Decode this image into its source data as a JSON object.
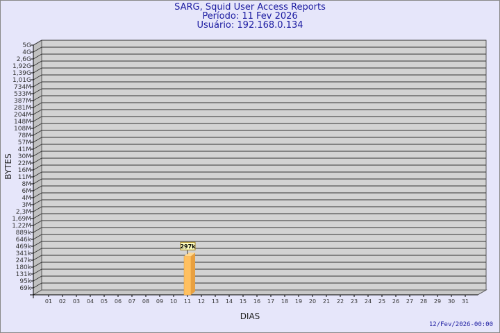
{
  "header": {
    "title": "SARG, Squid User Access Reports",
    "period": "Período: 11 Fev 2026",
    "user": "Usuário: 192.168.0.134"
  },
  "footer": {
    "timestamp": "12/Fev/2026-00:00"
  },
  "colors": {
    "background": "#e6e6fa",
    "plot": "#d3d3d3",
    "bar": "#ffc060",
    "title": "#1a1aa0"
  },
  "chart_data": {
    "type": "bar",
    "xlabel": "DIAS",
    "ylabel": "BYTES",
    "yscale": "log",
    "grid": true,
    "yticks": [
      "5G",
      "4G",
      "2,6G",
      "1,92G",
      "1,39G",
      "1,01G",
      "734M",
      "533M",
      "387M",
      "281M",
      "204M",
      "148M",
      "108M",
      "78M",
      "57M",
      "41M",
      "30M",
      "22M",
      "16M",
      "11M",
      "8M",
      "6M",
      "4M",
      "3M",
      "2,3M",
      "1,69M",
      "1,22M",
      "889k",
      "646k",
      "469k",
      "341k",
      "247k",
      "180k",
      "131k",
      "95k",
      "69k"
    ],
    "categories": [
      "01",
      "02",
      "03",
      "04",
      "05",
      "06",
      "07",
      "08",
      "09",
      "10",
      "11",
      "12",
      "13",
      "14",
      "15",
      "16",
      "17",
      "18",
      "19",
      "20",
      "21",
      "22",
      "23",
      "24",
      "25",
      "26",
      "27",
      "28",
      "29",
      "30",
      "31"
    ],
    "values": [
      {
        "day": "11",
        "bytes": 297000,
        "label": "297k"
      }
    ]
  }
}
